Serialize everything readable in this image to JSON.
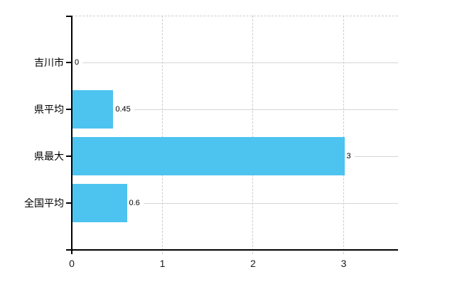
{
  "chart_data": {
    "type": "bar",
    "orientation": "horizontal",
    "title": "",
    "xlabel": "",
    "ylabel": "",
    "categories": [
      "吉川市",
      "県平均",
      "県最大",
      "全国平均"
    ],
    "values": [
      0,
      0.45,
      3,
      0.6
    ],
    "value_labels": [
      "0",
      "0.45",
      "3",
      "0.6"
    ],
    "x_ticks": [
      0,
      1,
      2,
      3
    ],
    "x_tick_labels": [
      "0",
      "1",
      "2",
      "3"
    ],
    "xlim": [
      0,
      3.6
    ],
    "grid": "vertical-dashed",
    "legend": "none",
    "colors": {
      "bar": "#4dc3f0",
      "grid_line": "#cccccc",
      "row_line": "#d5d5d5",
      "axis": "#000000",
      "text": "#000000",
      "background": "#ffffff"
    }
  }
}
